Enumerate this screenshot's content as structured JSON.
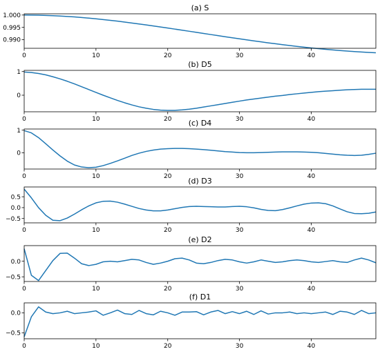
{
  "chart_data": [
    {
      "type": "line",
      "title": "(a) S",
      "xlim": [
        0,
        49
      ],
      "ylim": [
        0.9865,
        1.0005
      ],
      "xticks": [
        0,
        10,
        20,
        30,
        40
      ],
      "yticks": [
        1.0,
        0.995,
        0.99
      ],
      "ytick_labels": [
        "1.000",
        "0.995",
        "0.990"
      ],
      "color": "#1f77b4",
      "x": [
        0,
        1,
        2,
        3,
        4,
        5,
        6,
        7,
        8,
        9,
        10,
        11,
        12,
        13,
        14,
        15,
        16,
        17,
        18,
        19,
        20,
        21,
        22,
        23,
        24,
        25,
        26,
        27,
        28,
        29,
        30,
        31,
        32,
        33,
        34,
        35,
        36,
        37,
        38,
        39,
        40,
        41,
        42,
        43,
        44,
        45,
        46,
        47,
        48,
        49
      ],
      "y": [
        1.0,
        0.99998,
        0.99993,
        0.99985,
        0.99974,
        0.9996,
        0.99943,
        0.99923,
        0.999,
        0.99875,
        0.99847,
        0.99817,
        0.99785,
        0.99751,
        0.99715,
        0.99677,
        0.99638,
        0.99598,
        0.99557,
        0.99515,
        0.99472,
        0.99429,
        0.99385,
        0.99341,
        0.99297,
        0.99252,
        0.99208,
        0.99164,
        0.9912,
        0.99077,
        0.99034,
        0.98992,
        0.98951,
        0.98911,
        0.98872,
        0.98834,
        0.98797,
        0.98762,
        0.98728,
        0.98696,
        0.98665,
        0.98636,
        0.98609,
        0.98583,
        0.98559,
        0.98537,
        0.98517,
        0.98499,
        0.98483,
        0.98469
      ]
    },
    {
      "type": "line",
      "title": "(b) D5",
      "xlim": [
        0,
        49
      ],
      "ylim": [
        -0.7,
        1.05
      ],
      "xticks": [
        0,
        10,
        20,
        30,
        40
      ],
      "yticks": [
        1,
        0
      ],
      "ytick_labels": [
        "1",
        "0"
      ],
      "color": "#1f77b4",
      "x": [
        0,
        1,
        2,
        3,
        4,
        5,
        6,
        7,
        8,
        9,
        10,
        11,
        12,
        13,
        14,
        15,
        16,
        17,
        18,
        19,
        20,
        21,
        22,
        23,
        24,
        25,
        26,
        27,
        28,
        29,
        30,
        31,
        32,
        33,
        34,
        35,
        36,
        37,
        38,
        39,
        40,
        41,
        42,
        43,
        44,
        45,
        46,
        47,
        48,
        49
      ],
      "y": [
        0.98,
        0.96,
        0.92,
        0.86,
        0.78,
        0.69,
        0.59,
        0.48,
        0.36,
        0.24,
        0.12,
        0.0,
        -0.11,
        -0.22,
        -0.32,
        -0.41,
        -0.49,
        -0.55,
        -0.6,
        -0.63,
        -0.64,
        -0.64,
        -0.62,
        -0.59,
        -0.55,
        -0.5,
        -0.45,
        -0.4,
        -0.35,
        -0.3,
        -0.25,
        -0.2,
        -0.16,
        -0.12,
        -0.08,
        -0.04,
        -0.01,
        0.03,
        0.06,
        0.09,
        0.12,
        0.15,
        0.17,
        0.19,
        0.21,
        0.23,
        0.24,
        0.25,
        0.25,
        0.25
      ]
    },
    {
      "type": "line",
      "title": "(c) D4",
      "xlim": [
        0,
        49
      ],
      "ylim": [
        -0.72,
        1.05
      ],
      "xticks": [
        0,
        10,
        20,
        30,
        40
      ],
      "yticks": [
        1,
        0
      ],
      "ytick_labels": [
        "1",
        "0"
      ],
      "color": "#1f77b4",
      "x": [
        0,
        1,
        2,
        3,
        4,
        5,
        6,
        7,
        8,
        9,
        10,
        11,
        12,
        13,
        14,
        15,
        16,
        17,
        18,
        19,
        20,
        21,
        22,
        23,
        24,
        25,
        26,
        27,
        28,
        29,
        30,
        31,
        32,
        33,
        34,
        35,
        36,
        37,
        38,
        39,
        40,
        41,
        42,
        43,
        44,
        45,
        46,
        47,
        48,
        49
      ],
      "y": [
        0.98,
        0.88,
        0.67,
        0.4,
        0.12,
        -0.14,
        -0.37,
        -0.54,
        -0.63,
        -0.66,
        -0.64,
        -0.57,
        -0.47,
        -0.36,
        -0.24,
        -0.12,
        -0.02,
        0.06,
        0.12,
        0.16,
        0.18,
        0.19,
        0.19,
        0.18,
        0.16,
        0.14,
        0.11,
        0.08,
        0.05,
        0.03,
        0.01,
        0.0,
        0.0,
        0.01,
        0.02,
        0.03,
        0.04,
        0.04,
        0.04,
        0.03,
        0.02,
        0.0,
        -0.03,
        -0.06,
        -0.09,
        -0.11,
        -0.12,
        -0.11,
        -0.07,
        -0.02
      ]
    },
    {
      "type": "line",
      "title": "(d) D3",
      "xlim": [
        0,
        49
      ],
      "ylim": [
        -0.7,
        0.95
      ],
      "xticks": [
        0,
        10,
        20,
        30,
        40
      ],
      "yticks": [
        0.5,
        0.0,
        -0.5
      ],
      "ytick_labels": [
        "0.5",
        "0.0",
        "−0.5"
      ],
      "color": "#1f77b4",
      "x": [
        0,
        1,
        2,
        3,
        4,
        5,
        6,
        7,
        8,
        9,
        10,
        11,
        12,
        13,
        14,
        15,
        16,
        17,
        18,
        19,
        20,
        21,
        22,
        23,
        24,
        25,
        26,
        27,
        28,
        29,
        30,
        31,
        32,
        33,
        34,
        35,
        36,
        37,
        38,
        39,
        40,
        41,
        42,
        43,
        44,
        45,
        46,
        47,
        48,
        49
      ],
      "y": [
        0.85,
        0.45,
        0.0,
        -0.35,
        -0.58,
        -0.6,
        -0.48,
        -0.3,
        -0.1,
        0.08,
        0.22,
        0.29,
        0.3,
        0.25,
        0.16,
        0.06,
        -0.04,
        -0.11,
        -0.15,
        -0.15,
        -0.11,
        -0.05,
        0.01,
        0.05,
        0.06,
        0.05,
        0.04,
        0.03,
        0.03,
        0.05,
        0.06,
        0.04,
        -0.01,
        -0.08,
        -0.13,
        -0.14,
        -0.09,
        -0.01,
        0.08,
        0.16,
        0.21,
        0.22,
        0.18,
        0.08,
        -0.06,
        -0.19,
        -0.27,
        -0.28,
        -0.26,
        -0.2
      ]
    },
    {
      "type": "line",
      "title": "(e) D2",
      "xlim": [
        0,
        49
      ],
      "ylim": [
        -0.65,
        0.5
      ],
      "xticks": [
        0,
        10,
        20,
        30,
        40
      ],
      "yticks": [
        0.0,
        -0.5
      ],
      "ytick_labels": [
        "0.0",
        "−0.5"
      ],
      "color": "#1f77b4",
      "x": [
        0,
        1,
        2,
        3,
        4,
        5,
        6,
        7,
        8,
        9,
        10,
        11,
        12,
        13,
        14,
        15,
        16,
        17,
        18,
        19,
        20,
        21,
        22,
        23,
        24,
        25,
        26,
        27,
        28,
        29,
        30,
        31,
        32,
        33,
        34,
        35,
        36,
        37,
        38,
        39,
        40,
        41,
        42,
        43,
        44,
        45,
        46,
        47,
        48,
        49
      ],
      "y": [
        0.4,
        -0.45,
        -0.62,
        -0.3,
        0.02,
        0.25,
        0.26,
        0.1,
        -0.08,
        -0.14,
        -0.1,
        -0.02,
        0.0,
        -0.02,
        0.02,
        0.06,
        0.04,
        -0.04,
        -0.1,
        -0.06,
        0.0,
        0.08,
        0.1,
        0.04,
        -0.06,
        -0.08,
        -0.04,
        0.02,
        0.06,
        0.04,
        -0.02,
        -0.06,
        -0.02,
        0.04,
        0.0,
        -0.04,
        -0.02,
        0.02,
        0.04,
        0.02,
        -0.02,
        -0.04,
        -0.01,
        0.02,
        -0.02,
        -0.04,
        0.04,
        0.1,
        0.04,
        -0.05
      ]
    },
    {
      "type": "line",
      "title": "(f) D1",
      "xlim": [
        0,
        49
      ],
      "ylim": [
        -0.65,
        0.25
      ],
      "xticks": [
        0,
        10,
        20,
        30,
        40
      ],
      "yticks": [
        0.0,
        -0.5
      ],
      "ytick_labels": [
        "0.0",
        "−0.5"
      ],
      "color": "#1f77b4",
      "x": [
        0,
        1,
        2,
        3,
        4,
        5,
        6,
        7,
        8,
        9,
        10,
        11,
        12,
        13,
        14,
        15,
        16,
        17,
        18,
        19,
        20,
        21,
        22,
        23,
        24,
        25,
        26,
        27,
        28,
        29,
        30,
        31,
        32,
        33,
        34,
        35,
        36,
        37,
        38,
        39,
        40,
        41,
        42,
        43,
        44,
        45,
        46,
        47,
        48,
        49
      ],
      "y": [
        -0.6,
        -0.1,
        0.15,
        0.02,
        -0.02,
        0.0,
        0.04,
        -0.02,
        0.0,
        0.02,
        0.05,
        -0.06,
        0.0,
        0.07,
        -0.02,
        -0.04,
        0.06,
        -0.02,
        -0.05,
        0.04,
        0.0,
        -0.06,
        0.02,
        0.02,
        0.03,
        -0.05,
        0.02,
        0.06,
        -0.02,
        0.03,
        -0.02,
        0.04,
        -0.04,
        0.05,
        -0.03,
        0.0,
        0.0,
        0.02,
        -0.02,
        0.0,
        -0.02,
        0.0,
        0.02,
        -0.04,
        0.04,
        0.02,
        -0.04,
        0.06,
        -0.02,
        0.0
      ]
    }
  ]
}
